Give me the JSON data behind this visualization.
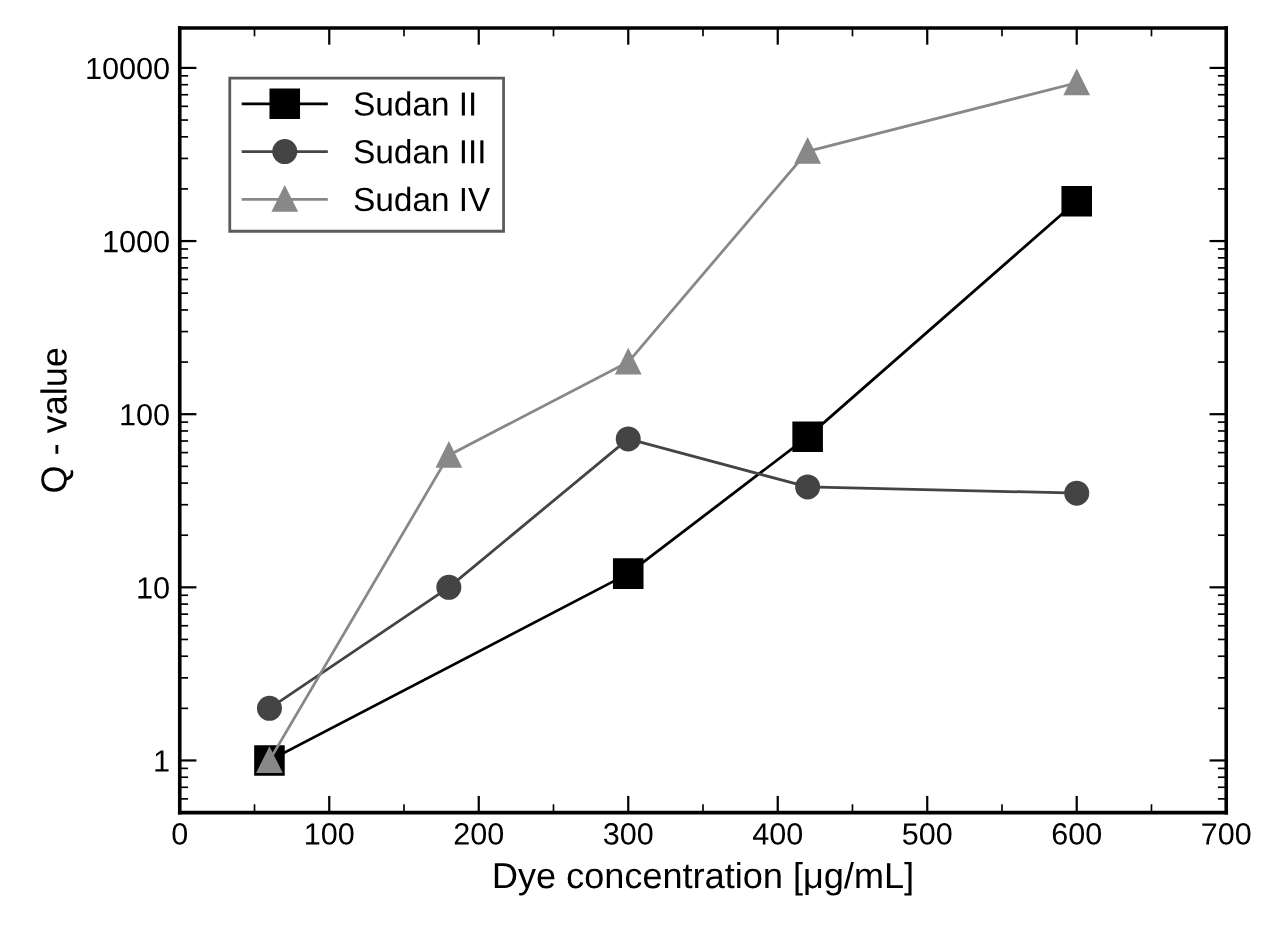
{
  "chart_data": {
    "type": "line",
    "xlabel": "Dye concentration [μg/mL]",
    "ylabel": "Q - value",
    "log": "y",
    "xlim": [
      0,
      700
    ],
    "ylim": [
      0.5,
      17000
    ],
    "xticks": [
      0,
      100,
      200,
      300,
      400,
      500,
      600,
      700
    ],
    "yticks": [
      1,
      10,
      100,
      1000,
      10000
    ],
    "grid": false,
    "legend": "top left",
    "line_style": "solid",
    "series": [
      {
        "name": "Sudan II",
        "color": "#000000",
        "marker": "square",
        "x": [
          60,
          300,
          420,
          600
        ],
        "values": [
          1,
          12,
          74,
          1700
        ]
      },
      {
        "name": "Sudan III",
        "color": "#444444",
        "marker": "circle",
        "x": [
          60,
          180,
          300,
          420,
          600
        ],
        "values": [
          2,
          10,
          72,
          38,
          35
        ]
      },
      {
        "name": "Sudan IV",
        "color": "#888888",
        "marker": "triangle",
        "x": [
          60,
          180,
          300,
          420,
          600
        ],
        "values": [
          1,
          58,
          200,
          3300,
          8200
        ]
      }
    ]
  }
}
